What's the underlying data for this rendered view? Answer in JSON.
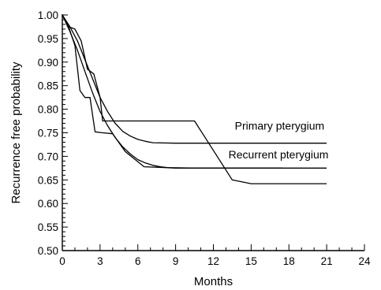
{
  "chart_data": {
    "type": "line",
    "title": "",
    "xlabel": "Months",
    "ylabel": "Recurrence free probability",
    "xlim": [
      0,
      24
    ],
    "ylim": [
      0.5,
      1.0
    ],
    "x_ticks": [
      0,
      3,
      6,
      9,
      12,
      15,
      18,
      21,
      24
    ],
    "x_tick_labels": [
      "0",
      "3",
      "6",
      "9",
      "12",
      "15",
      "18",
      "21",
      "24"
    ],
    "y_ticks": [
      0.5,
      0.55,
      0.6,
      0.65,
      0.7,
      0.75,
      0.8,
      0.85,
      0.9,
      0.95,
      1.0
    ],
    "y_tick_labels": [
      "0.50",
      "0.55",
      "0.60",
      "0.65",
      "0.70",
      "0.75",
      "0.80",
      "0.85",
      "0.90",
      "0.95",
      "1.00"
    ],
    "grid": false,
    "series": [
      {
        "label_ref": 0,
        "values_x": [
          0,
          0.6,
          1.2,
          1.8,
          2.4,
          3.0,
          3.6,
          4.2,
          4.8,
          5.4,
          6.0,
          6.6,
          7.2,
          9,
          12,
          15,
          18,
          21
        ],
        "values_y": [
          1.0,
          0.975,
          0.945,
          0.905,
          0.865,
          0.825,
          0.795,
          0.77,
          0.753,
          0.743,
          0.736,
          0.732,
          0.729,
          0.728,
          0.728,
          0.728,
          0.728,
          0.728
        ]
      },
      {
        "label_ref": 1,
        "values_x": [
          0,
          0.6,
          1.2,
          1.8,
          2.4,
          3.0,
          3.6,
          4.2,
          4.8,
          5.4,
          6.0,
          6.6,
          7.2,
          7.8,
          8.4,
          9,
          12,
          15,
          18,
          21
        ],
        "values_y": [
          1.0,
          0.965,
          0.925,
          0.88,
          0.835,
          0.795,
          0.765,
          0.74,
          0.72,
          0.705,
          0.693,
          0.686,
          0.681,
          0.678,
          0.676,
          0.675,
          0.675,
          0.675,
          0.675,
          0.675
        ]
      },
      {
        "values_x": [
          0,
          0.5,
          1.0,
          1.5,
          2.0,
          2.5,
          3.0,
          3.2,
          10.5,
          13.5,
          15.0,
          21.0
        ],
        "values_y": [
          1.0,
          0.975,
          0.97,
          0.945,
          0.885,
          0.875,
          0.825,
          0.775,
          0.775,
          0.65,
          0.642,
          0.642
        ]
      },
      {
        "values_x": [
          0,
          0.5,
          1.0,
          1.4,
          1.8,
          2.2,
          2.6,
          3.2,
          4.0,
          5.0,
          6.5,
          8.5,
          10.5,
          17.5
        ],
        "values_y": [
          1.0,
          0.975,
          0.935,
          0.84,
          0.825,
          0.825,
          0.752,
          0.75,
          0.748,
          0.71,
          0.678,
          0.676,
          0.675,
          0.675
        ]
      }
    ],
    "annotations": [
      {
        "text": "Primary pterygium",
        "x": 13.7,
        "y": 0.765
      },
      {
        "text": "Recurrent pterygium",
        "x": 13.2,
        "y": 0.704
      }
    ]
  }
}
